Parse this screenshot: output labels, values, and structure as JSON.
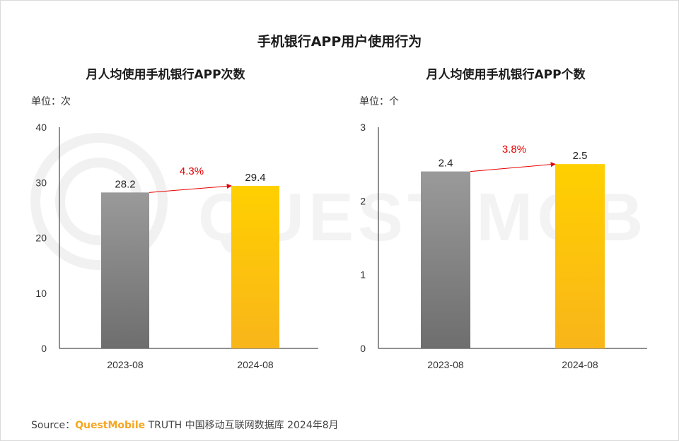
{
  "page": {
    "title": "手机银行APP用户使用行为",
    "source_prefix": "Source：",
    "source_brand": "QuestMobile",
    "source_rest": " TRUTH 中国移动互联网数据库 2024年8月",
    "watermark_text": "QUEST MOBILE"
  },
  "colors": {
    "bar_2023_top": "#9a9a9a",
    "bar_2023_bottom": "#6e6e6e",
    "bar_2024_top": "#ffd000",
    "bar_2024_bottom": "#f9b51a",
    "growth": "#e60000",
    "axis": "#222222"
  },
  "chart_data": [
    {
      "type": "bar",
      "title": "月人均使用手机银行APP次数",
      "unit": "单位：次",
      "categories": [
        "2023-08",
        "2024-08"
      ],
      "values": [
        28.2,
        29.4
      ],
      "value_labels": [
        "28.2",
        "29.4"
      ],
      "ylim": [
        0,
        40
      ],
      "yticks": [
        "0",
        "10",
        "20",
        "30",
        "40"
      ],
      "growth_label": "4.3%"
    },
    {
      "type": "bar",
      "title": "月人均使用手机银行APP个数",
      "unit": "单位：个",
      "categories": [
        "2023-08",
        "2024-08"
      ],
      "values": [
        2.4,
        2.5
      ],
      "value_labels": [
        "2.4",
        "2.5"
      ],
      "ylim": [
        0,
        3
      ],
      "yticks": [
        "0",
        "1",
        "2",
        "3"
      ],
      "growth_label": "3.8%"
    }
  ]
}
